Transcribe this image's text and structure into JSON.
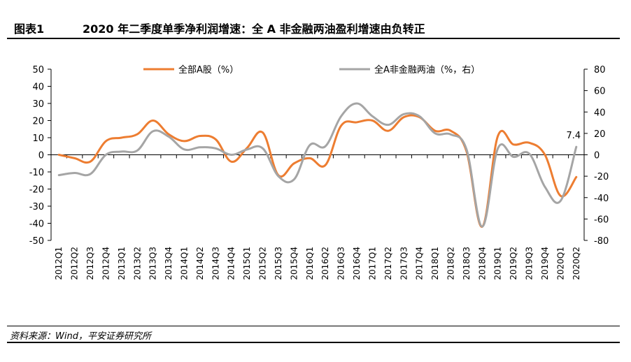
{
  "title": {
    "label": "图表1",
    "text": "2020 年二季度单季净利润增速：全 A 非金融两油盈利增速由负转正"
  },
  "source": "资料来源：Wind，平安证券研究所",
  "colors": {
    "series1": "#ED7D31",
    "series2": "#A5A5A5",
    "axis": "#000000"
  },
  "chart_data": {
    "type": "line",
    "categories": [
      "2012Q1",
      "2012Q2",
      "2012Q3",
      "2012Q4",
      "2013Q1",
      "2013Q2",
      "2013Q3",
      "2013Q4",
      "2014Q1",
      "2014Q2",
      "2014Q3",
      "2014Q4",
      "2015Q1",
      "2015Q2",
      "2015Q3",
      "2015Q4",
      "2016Q1",
      "2016Q2",
      "2016Q3",
      "2016Q4",
      "2017Q1",
      "2017Q2",
      "2017Q3",
      "2017Q4",
      "2018Q1",
      "2018Q2",
      "2018Q3",
      "2018Q4",
      "2019Q1",
      "2019Q2",
      "2019Q3",
      "2019Q4",
      "2020Q1",
      "2020Q2"
    ],
    "series": [
      {
        "name": "全部A股（%）",
        "axis": "left",
        "values": [
          0,
          -2,
          -4,
          8,
          10,
          12,
          20,
          12,
          8,
          11,
          9,
          -4,
          4,
          13,
          -12,
          -5,
          -2,
          -6,
          17,
          19,
          20,
          14,
          22,
          22,
          14,
          14,
          2,
          -42,
          11,
          6,
          7,
          0,
          -24,
          -13
        ]
      },
      {
        "name": "全A非金融两油（%，右）",
        "axis": "right",
        "values": [
          -19,
          -17,
          -18,
          0,
          3,
          4,
          22,
          17,
          5,
          7,
          6,
          0,
          5,
          6,
          -20,
          -23,
          9,
          8,
          36,
          48,
          36,
          28,
          38,
          36,
          20,
          19,
          5,
          -67,
          6,
          -2,
          1,
          -30,
          -43,
          7.4
        ]
      }
    ],
    "y_left": {
      "min": -50,
      "max": 50,
      "ticks": [
        "50",
        "40",
        "30",
        "20",
        "10",
        "0",
        "-10",
        "-20",
        "-30",
        "-40",
        "-50"
      ]
    },
    "y_right": {
      "min": -80,
      "max": 80,
      "ticks": [
        "80",
        "60",
        "40",
        "20",
        "0",
        "-20",
        "-40",
        "-60",
        "-80"
      ]
    },
    "annotation": {
      "text": "7.4",
      "series_index": 1,
      "point_index": 33
    },
    "legend_placement": "top",
    "grid": false
  }
}
